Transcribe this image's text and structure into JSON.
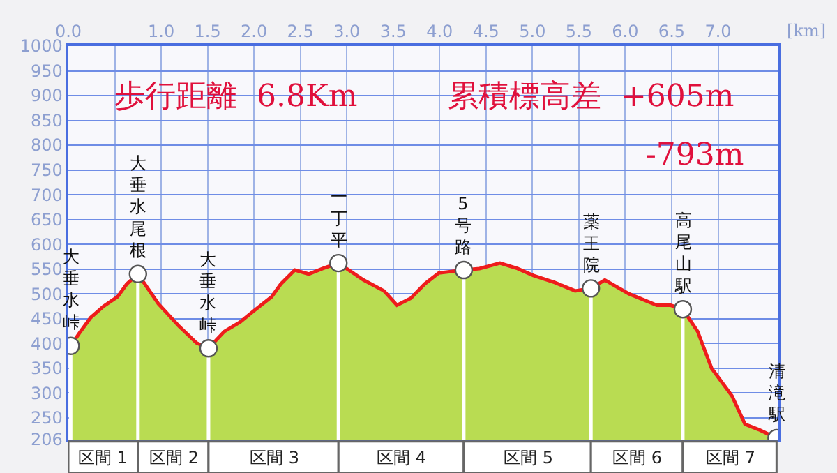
{
  "chart_data": {
    "type": "area",
    "xlabel": "[km]",
    "x": [
      0.025,
      0.12,
      0.24,
      0.38,
      0.53,
      0.63,
      0.75,
      0.97,
      1.19,
      1.38,
      1.51,
      1.68,
      1.85,
      2.0,
      2.19,
      2.29,
      2.44,
      2.59,
      2.74,
      2.91,
      3.18,
      3.4,
      3.54,
      3.69,
      3.84,
      3.99,
      4.26,
      4.43,
      4.65,
      4.84,
      5.01,
      5.24,
      5.46,
      5.63,
      5.78,
      6.04,
      6.34,
      6.49,
      6.62,
      6.78,
      6.93,
      7.15,
      7.29,
      7.44,
      7.63
    ],
    "series": [
      {
        "color": "#b9dc52",
        "values": [
          395,
          421,
          452,
          475,
          494,
          520,
          540,
          480,
          435,
          401,
          390,
          424,
          443,
          466,
          494,
          520,
          548,
          540,
          551,
          562,
          528,
          506,
          477,
          491,
          520,
          542,
          548,
          551,
          562,
          551,
          537,
          523,
          506,
          511,
          528,
          500,
          477,
          477,
          469,
          424,
          350,
          294,
          237,
          226,
          209
        ]
      },
      {
        "type": "line",
        "color": "#ee1c1c",
        "values": [
          395,
          421,
          452,
          475,
          494,
          520,
          540,
          480,
          435,
          401,
          390,
          424,
          443,
          466,
          494,
          520,
          548,
          540,
          551,
          562,
          528,
          506,
          477,
          491,
          520,
          542,
          548,
          551,
          562,
          551,
          537,
          523,
          506,
          511,
          528,
          500,
          477,
          477,
          469,
          424,
          350,
          294,
          237,
          226,
          209
        ]
      },
      {
        "type": "lollipop",
        "color": "#ffffff",
        "x": [
          0.025,
          0.75,
          1.51,
          2.91,
          4.26,
          5.63,
          6.62,
          7.63
        ],
        "values": [
          395,
          540,
          390,
          562,
          548,
          511,
          469,
          209
        ]
      }
    ],
    "xlim": [
      0,
      7.65
    ],
    "xticks": [
      {
        "value": 0,
        "label": "0.0"
      },
      {
        "value": 0.5,
        "label": null
      },
      {
        "value": 1,
        "label": "1.0"
      },
      {
        "value": 1.5,
        "label": "1.5"
      },
      {
        "value": 2,
        "label": "2.0"
      },
      {
        "value": 2.5,
        "label": "2.5"
      },
      {
        "value": 3,
        "label": "3.0"
      },
      {
        "value": 3.5,
        "label": "3.5"
      },
      {
        "value": 4,
        "label": "4.0"
      },
      {
        "value": 4.5,
        "label": "4.5"
      },
      {
        "value": 5,
        "label": "5.0"
      },
      {
        "value": 5.5,
        "label": "5.5"
      },
      {
        "value": 6,
        "label": "6.0"
      },
      {
        "value": 6.5,
        "label": "6.5"
      },
      {
        "value": 7,
        "label": "7.0"
      }
    ],
    "ylim": [
      206,
      1000
    ],
    "yticks": [
      206,
      250,
      300,
      350,
      400,
      450,
      500,
      550,
      600,
      650,
      700,
      750,
      800,
      850,
      900,
      950,
      1000
    ],
    "grid": true,
    "annotations": [
      "歩行距離  6.8Km",
      "累積標高差  +605m",
      "-793m",
      "区間 1",
      "区間 2",
      "区間 3",
      "区間 4",
      "区間 5",
      "区間 6",
      "区間 7",
      {
        "text": "大垂水峠",
        "x": 0.025,
        "y": 395
      },
      {
        "text": "大垂水尾根",
        "x": 0.75,
        "y": 540
      },
      {
        "text": "大垂水峠",
        "x": 1.51,
        "y": 390
      },
      {
        "text": "一丁平",
        "x": 2.91,
        "y": 562
      },
      {
        "text": "5号路",
        "x": 4.26,
        "y": 548
      },
      {
        "text": "薬王院",
        "x": 5.63,
        "y": 511
      },
      {
        "text": "高尾山駅",
        "x": 6.62,
        "y": 469
      },
      {
        "text": "清滝駅",
        "x": 7.63,
        "y": 209
      }
    ]
  }
}
